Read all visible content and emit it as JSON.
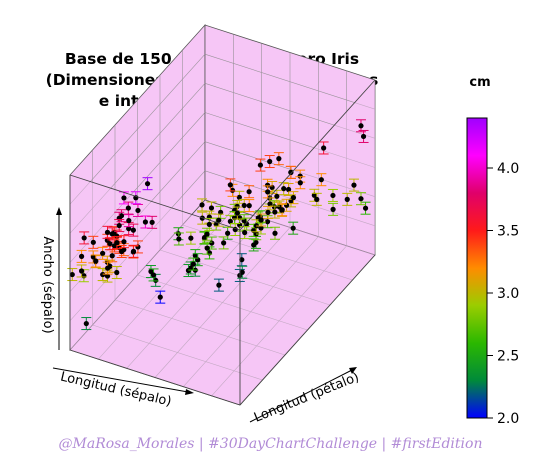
{
  "chart_data": {
    "type": "scatter",
    "title": [
      "Base de 150 flores del género Iris",
      "(Dimensiones de sus partes botánicas",
      "e intervalos de confianza)"
    ],
    "axis_labels": {
      "x": "Longitud (sépalo)",
      "y": "Longitud (pétalo)",
      "z": "Ancho (sépalo)"
    },
    "colorbar": {
      "title": "cm",
      "ticks": [
        "2.0",
        "2.5",
        "3.0",
        "3.5",
        "4.0"
      ],
      "range": [
        2.0,
        4.4
      ],
      "colors": [
        "#0000ff",
        "#008a3a",
        "#2bb800",
        "#9acd00",
        "#ff8c00",
        "#ff1a1a",
        "#e0006a",
        "#ff00ff",
        "#a000ff"
      ]
    },
    "panel_color": "#f6c6f6",
    "grid": true,
    "xlim": [
      4.3,
      7.9
    ],
    "ylim": [
      1.0,
      6.9
    ],
    "zlim": [
      2.0,
      4.4
    ],
    "points": [
      [
        5.1,
        1.4,
        3.5
      ],
      [
        4.9,
        1.4,
        3.0
      ],
      [
        4.7,
        1.3,
        3.2
      ],
      [
        4.6,
        1.5,
        3.1
      ],
      [
        5.0,
        1.4,
        3.6
      ],
      [
        5.4,
        1.7,
        3.9
      ],
      [
        4.6,
        1.4,
        3.4
      ],
      [
        5.0,
        1.5,
        3.4
      ],
      [
        4.4,
        1.4,
        2.9
      ],
      [
        4.9,
        1.5,
        3.1
      ],
      [
        5.4,
        1.5,
        3.7
      ],
      [
        4.8,
        1.6,
        3.4
      ],
      [
        4.8,
        1.4,
        3.0
      ],
      [
        4.3,
        1.1,
        3.0
      ],
      [
        5.8,
        1.2,
        4.0
      ],
      [
        5.7,
        1.5,
        4.4
      ],
      [
        5.4,
        1.3,
        3.9
      ],
      [
        5.1,
        1.4,
        3.5
      ],
      [
        5.7,
        1.7,
        3.8
      ],
      [
        5.1,
        1.5,
        3.8
      ],
      [
        5.4,
        1.7,
        3.4
      ],
      [
        5.1,
        1.5,
        3.7
      ],
      [
        4.6,
        1.0,
        3.6
      ],
      [
        5.1,
        1.7,
        3.3
      ],
      [
        4.8,
        1.9,
        3.4
      ],
      [
        5.0,
        1.6,
        3.0
      ],
      [
        5.0,
        1.6,
        3.4
      ],
      [
        5.2,
        1.5,
        3.5
      ],
      [
        5.2,
        1.4,
        3.4
      ],
      [
        4.7,
        1.6,
        3.2
      ],
      [
        4.8,
        1.6,
        3.1
      ],
      [
        5.4,
        1.5,
        3.4
      ],
      [
        5.2,
        1.5,
        4.1
      ],
      [
        5.5,
        1.4,
        4.2
      ],
      [
        4.9,
        1.5,
        3.1
      ],
      [
        5.0,
        1.2,
        3.2
      ],
      [
        5.5,
        1.3,
        3.5
      ],
      [
        4.9,
        1.4,
        3.6
      ],
      [
        4.4,
        1.3,
        3.0
      ],
      [
        5.1,
        1.5,
        3.4
      ],
      [
        5.0,
        1.3,
        3.5
      ],
      [
        4.5,
        1.3,
        2.3
      ],
      [
        4.4,
        1.3,
        3.2
      ],
      [
        5.0,
        1.6,
        3.5
      ],
      [
        5.1,
        1.9,
        3.8
      ],
      [
        4.8,
        1.4,
        3.0
      ],
      [
        5.1,
        1.6,
        3.8
      ],
      [
        4.6,
        1.4,
        3.2
      ],
      [
        5.3,
        1.5,
        3.7
      ],
      [
        5.0,
        1.4,
        3.3
      ],
      [
        7.0,
        4.7,
        3.2
      ],
      [
        6.4,
        4.5,
        3.2
      ],
      [
        6.9,
        4.9,
        3.1
      ],
      [
        5.5,
        4.0,
        2.3
      ],
      [
        6.5,
        4.6,
        2.8
      ],
      [
        5.7,
        4.5,
        2.8
      ],
      [
        6.3,
        4.7,
        3.3
      ],
      [
        4.9,
        3.3,
        2.4
      ],
      [
        6.6,
        4.6,
        2.9
      ],
      [
        5.2,
        3.9,
        2.7
      ],
      [
        5.0,
        3.5,
        2.0
      ],
      [
        5.9,
        4.2,
        3.0
      ],
      [
        6.0,
        4.0,
        2.2
      ],
      [
        6.1,
        4.7,
        2.9
      ],
      [
        5.6,
        3.6,
        2.9
      ],
      [
        6.7,
        4.4,
        3.1
      ],
      [
        5.6,
        4.5,
        3.0
      ],
      [
        5.8,
        4.1,
        2.7
      ],
      [
        6.2,
        4.5,
        2.2
      ],
      [
        5.6,
        3.9,
        2.5
      ],
      [
        5.9,
        4.8,
        3.2
      ],
      [
        6.1,
        4.0,
        2.8
      ],
      [
        6.3,
        4.9,
        2.5
      ],
      [
        6.1,
        4.7,
        2.8
      ],
      [
        6.4,
        4.3,
        2.9
      ],
      [
        6.6,
        4.4,
        3.0
      ],
      [
        6.8,
        4.8,
        2.8
      ],
      [
        6.7,
        5.0,
        3.0
      ],
      [
        6.0,
        4.5,
        2.9
      ],
      [
        5.7,
        3.5,
        2.6
      ],
      [
        5.5,
        3.8,
        2.4
      ],
      [
        5.5,
        3.7,
        2.4
      ],
      [
        5.8,
        3.9,
        2.7
      ],
      [
        6.0,
        5.1,
        2.7
      ],
      [
        5.4,
        4.5,
        3.0
      ],
      [
        6.0,
        4.5,
        3.4
      ],
      [
        6.7,
        4.7,
        3.1
      ],
      [
        6.3,
        4.4,
        2.3
      ],
      [
        5.6,
        4.1,
        3.0
      ],
      [
        5.5,
        4.0,
        2.5
      ],
      [
        5.5,
        4.4,
        2.6
      ],
      [
        6.1,
        4.6,
        3.0
      ],
      [
        5.8,
        4.0,
        2.6
      ],
      [
        5.0,
        3.3,
        2.3
      ],
      [
        5.6,
        4.2,
        2.7
      ],
      [
        5.7,
        4.2,
        3.0
      ],
      [
        5.7,
        4.2,
        2.9
      ],
      [
        6.2,
        4.3,
        2.9
      ],
      [
        5.1,
        3.0,
        2.5
      ],
      [
        5.7,
        4.1,
        2.8
      ],
      [
        6.3,
        6.0,
        3.3
      ],
      [
        5.8,
        5.1,
        2.7
      ],
      [
        7.1,
        5.9,
        3.0
      ],
      [
        6.3,
        5.6,
        2.9
      ],
      [
        6.5,
        5.8,
        3.0
      ],
      [
        7.6,
        6.6,
        3.0
      ],
      [
        4.9,
        4.5,
        2.5
      ],
      [
        7.3,
        6.3,
        2.9
      ],
      [
        6.7,
        5.8,
        2.5
      ],
      [
        7.2,
        6.1,
        3.6
      ],
      [
        6.5,
        5.1,
        3.2
      ],
      [
        6.4,
        5.3,
        2.7
      ],
      [
        6.8,
        5.5,
        3.0
      ],
      [
        5.7,
        5.0,
        2.5
      ],
      [
        5.8,
        5.1,
        2.8
      ],
      [
        6.4,
        5.3,
        3.2
      ],
      [
        6.5,
        5.5,
        3.0
      ],
      [
        7.7,
        6.7,
        3.8
      ],
      [
        7.7,
        6.9,
        2.6
      ],
      [
        6.0,
        5.0,
        2.2
      ],
      [
        6.9,
        5.7,
        3.2
      ],
      [
        5.6,
        4.9,
        2.8
      ],
      [
        7.7,
        6.7,
        2.8
      ],
      [
        6.3,
        4.9,
        2.7
      ],
      [
        6.7,
        5.7,
        3.3
      ],
      [
        7.2,
        6.0,
        3.2
      ],
      [
        6.2,
        4.8,
        2.8
      ],
      [
        6.1,
        4.9,
        3.0
      ],
      [
        6.4,
        5.6,
        2.8
      ],
      [
        7.2,
        5.8,
        3.0
      ],
      [
        7.4,
        6.1,
        2.8
      ],
      [
        7.9,
        6.4,
        3.8
      ],
      [
        6.4,
        5.6,
        2.8
      ],
      [
        6.3,
        5.1,
        2.8
      ],
      [
        6.1,
        5.6,
        2.6
      ],
      [
        7.7,
        6.1,
        3.0
      ],
      [
        6.3,
        5.6,
        3.4
      ],
      [
        6.4,
        5.5,
        3.1
      ],
      [
        6.0,
        4.8,
        3.0
      ],
      [
        6.9,
        5.4,
        3.1
      ],
      [
        6.7,
        5.6,
        3.1
      ],
      [
        6.9,
        5.1,
        3.1
      ],
      [
        5.8,
        5.1,
        2.7
      ],
      [
        6.8,
        5.9,
        3.2
      ],
      [
        6.7,
        5.7,
        3.3
      ],
      [
        6.7,
        5.2,
        3.0
      ],
      [
        6.3,
        5.0,
        2.5
      ],
      [
        6.5,
        5.2,
        3.0
      ],
      [
        6.2,
        5.4,
        3.4
      ],
      [
        5.9,
        5.1,
        3.0
      ]
    ]
  },
  "credit": "@MaRosa_Morales | #30DayChartChallenge | #firstEdition"
}
